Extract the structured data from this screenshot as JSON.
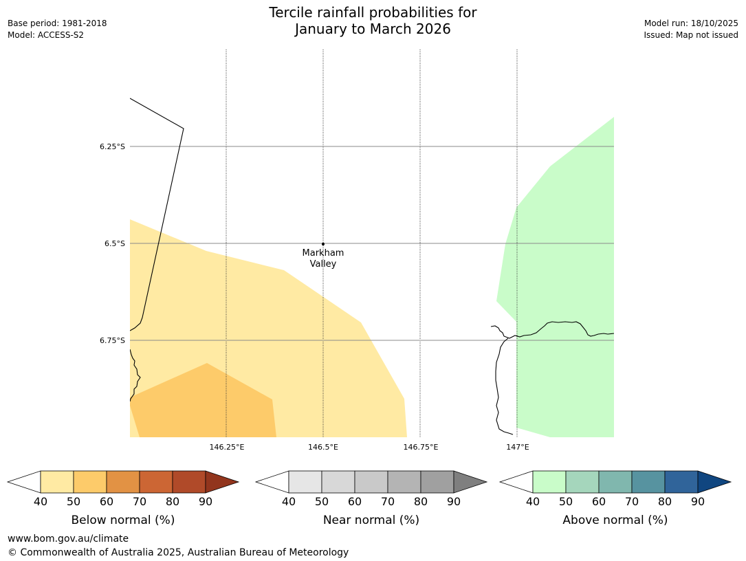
{
  "title": {
    "line1": "Tercile rainfall probabilities for",
    "line2": "January to March 2026"
  },
  "meta_left": {
    "base_period": "Base period: 1981-2018",
    "model": "Model: ACCESS-S2"
  },
  "meta_right": {
    "model_run": "Model run: 18/10/2025",
    "issued": "Issued: Map not issued"
  },
  "map": {
    "lat_labels": [
      "6.25°S",
      "6.5°S",
      "6.75°S"
    ],
    "lon_labels": [
      "146.25°E",
      "146.5°E",
      "146.75°E",
      "147°E"
    ],
    "place_label_line1": "Markham",
    "place_label_line2": "Valley",
    "colors": {
      "below_50": "#ffeaa3",
      "below_60": "#fdcb6a",
      "above_50": "#c9fcc9"
    }
  },
  "legends": [
    {
      "title": "Below normal (%)",
      "ticks": [
        "40",
        "50",
        "60",
        "70",
        "80",
        "90"
      ],
      "colors": [
        "#ffeaa3",
        "#fdcb6a",
        "#e29244",
        "#cc6634",
        "#b04a29"
      ],
      "arrow_color": "#92351d"
    },
    {
      "title": "Near normal (%)",
      "ticks": [
        "40",
        "50",
        "60",
        "70",
        "80",
        "90"
      ],
      "colors": [
        "#e6e6e6",
        "#d8d8d8",
        "#c9c9c9",
        "#b4b4b4",
        "#a0a0a0"
      ],
      "arrow_color": "#7f7f7f"
    },
    {
      "title": "Above normal (%)",
      "ticks": [
        "40",
        "50",
        "60",
        "70",
        "80",
        "90"
      ],
      "colors": [
        "#c9fcc9",
        "#a5d6bc",
        "#80b7ae",
        "#5793a0",
        "#30649a"
      ],
      "arrow_color": "#104680"
    }
  ],
  "footer": {
    "url": "www.bom.gov.au/climate",
    "copyright": "© Commonwealth of Australia 2025, Australian Bureau of Meteorology"
  }
}
